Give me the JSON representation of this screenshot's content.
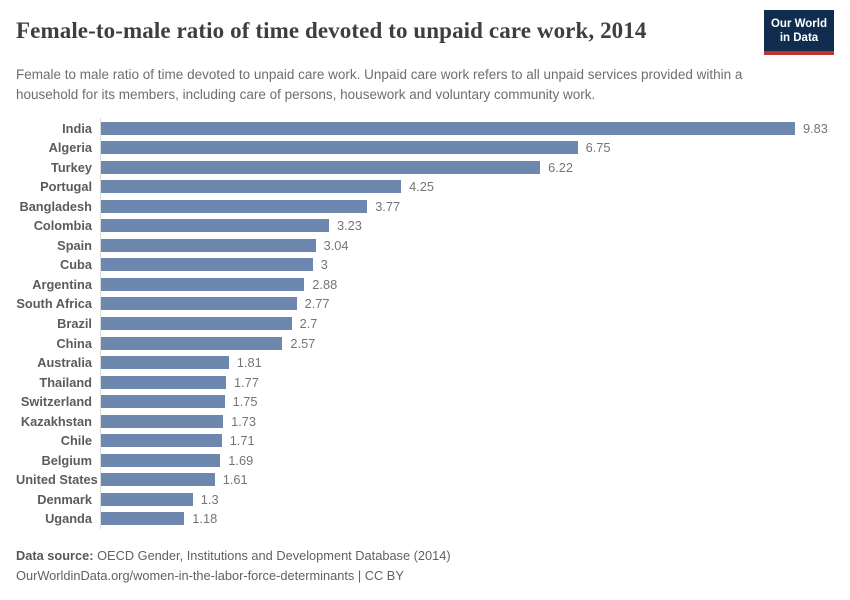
{
  "header": {
    "title": "Female-to-male ratio of time devoted to unpaid care work, 2014",
    "subtitle": "Female to male ratio of time devoted to unpaid care work. Unpaid care work refers to all unpaid services provided within a household for its members, including care of persons, housework and voluntary community work.",
    "logo": {
      "line1": "Our World",
      "line2": "in Data",
      "bg_color": "#102d50",
      "underline_color": "#c0332e",
      "text_color": "#ffffff"
    }
  },
  "chart_data": {
    "type": "bar",
    "orientation": "horizontal",
    "title": "Female-to-male ratio of time devoted to unpaid care work, 2014",
    "categories": [
      "India",
      "Algeria",
      "Turkey",
      "Portugal",
      "Bangladesh",
      "Colombia",
      "Spain",
      "Cuba",
      "Argentina",
      "South Africa",
      "Brazil",
      "China",
      "Australia",
      "Thailand",
      "Switzerland",
      "Kazakhstan",
      "Chile",
      "Belgium",
      "United States",
      "Denmark",
      "Uganda"
    ],
    "values": [
      9.83,
      6.75,
      6.22,
      4.25,
      3.77,
      3.23,
      3.04,
      3,
      2.88,
      2.77,
      2.7,
      2.57,
      1.81,
      1.77,
      1.75,
      1.73,
      1.71,
      1.69,
      1.61,
      1.3,
      1.18
    ],
    "value_labels": [
      "9.83",
      "6.75",
      "6.22",
      "4.25",
      "3.77",
      "3.23",
      "3.04",
      "3",
      "2.88",
      "2.77",
      "2.7",
      "2.57",
      "1.81",
      "1.77",
      "1.75",
      "1.73",
      "1.71",
      "1.69",
      "1.61",
      "1.3",
      "1.18"
    ],
    "xlim": [
      0,
      9.83
    ],
    "bar_color": "#6e87ae",
    "axis_line_color": "#dcdcdc",
    "grid": false,
    "legend": "none",
    "xlabel": "",
    "ylabel": ""
  },
  "footer": {
    "source_label": "Data source:",
    "source_text": " OECD Gender, Institutions and Development Database (2014)",
    "link_line": "OurWorldinData.org/women-in-the-labor-force-determinants | CC BY"
  }
}
